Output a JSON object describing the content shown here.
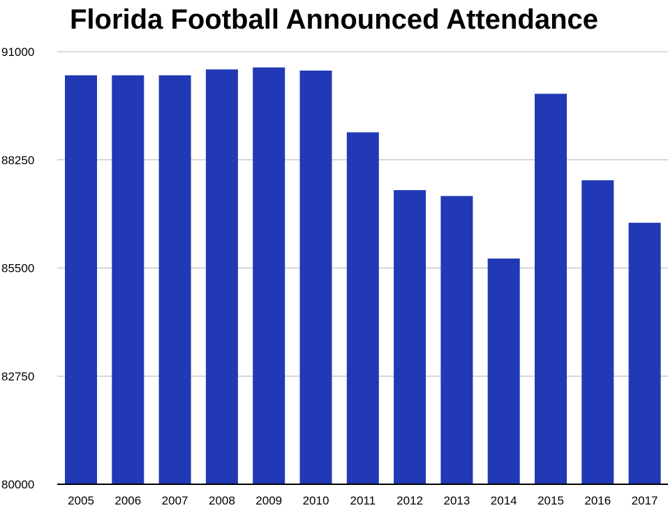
{
  "chart_data": {
    "type": "bar",
    "title": "Florida Football Announced Attendance",
    "xlabel": "",
    "ylabel": "",
    "categories": [
      "2005",
      "2006",
      "2007",
      "2008",
      "2009",
      "2010",
      "2011",
      "2012",
      "2013",
      "2014",
      "2015",
      "2016",
      "2017"
    ],
    "values": [
      90400,
      90400,
      90400,
      90550,
      90600,
      90520,
      88950,
      87480,
      87330,
      85740,
      89930,
      87730,
      86650
    ],
    "ylim": [
      80000,
      91000
    ],
    "yticks": [
      "80000",
      "82750",
      "85500",
      "88250",
      "91000"
    ],
    "grid": true,
    "legend": "none",
    "colors": {
      "bar": "#2139b4",
      "grid": "#b4b4b4",
      "axis": "#000000"
    }
  }
}
